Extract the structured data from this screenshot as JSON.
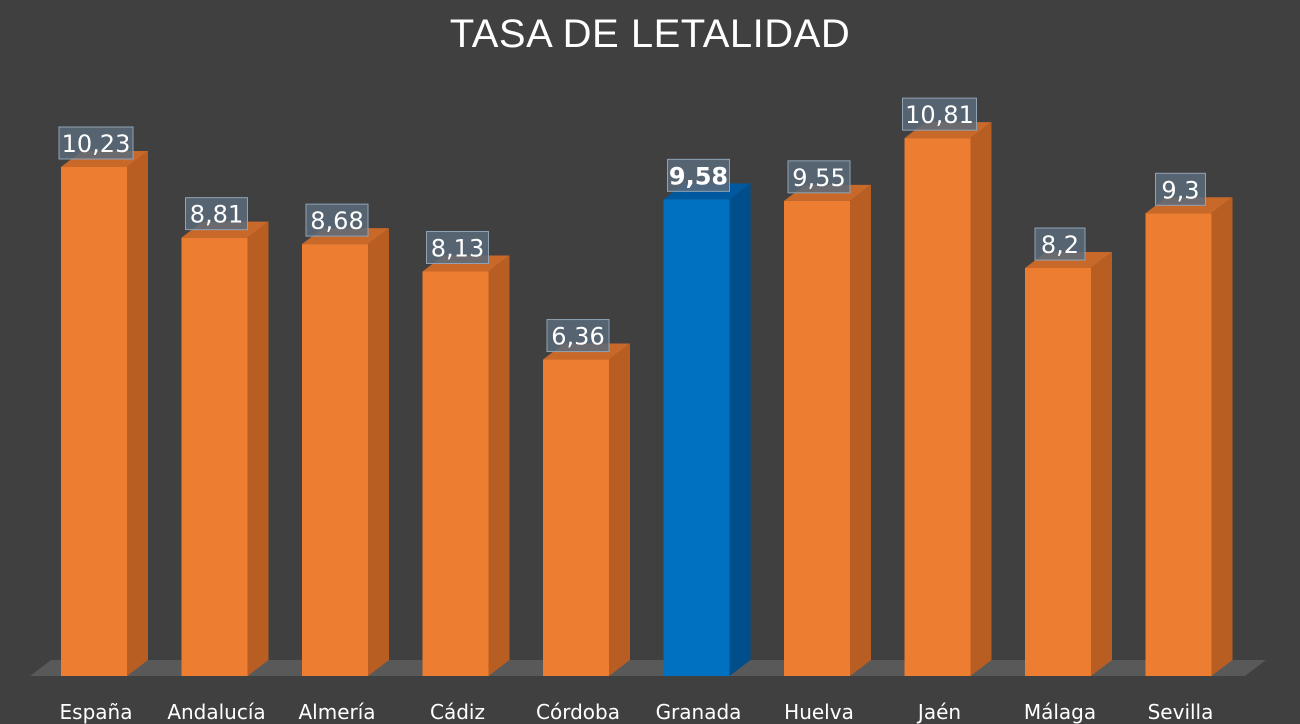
{
  "chart_data": {
    "type": "bar",
    "title": "TASA DE LETALIDAD",
    "xlabel": "",
    "ylabel": "",
    "categories": [
      "España",
      "Andalucía",
      "Almería",
      "Cádiz",
      "Córdoba",
      "Granada",
      "Huelva",
      "Jaén",
      "Málaga",
      "Sevilla"
    ],
    "values": [
      10.23,
      8.81,
      8.68,
      8.13,
      6.36,
      9.58,
      9.55,
      10.81,
      8.2,
      9.3
    ],
    "value_labels": [
      "10,23",
      "8,81",
      "8,68",
      "8,13",
      "6,36",
      "9,58",
      "9,55",
      "10,81",
      "8,2",
      "9,3"
    ],
    "highlight_index": 5,
    "ylim": [
      0,
      11.5
    ],
    "grid": false,
    "legend": "none",
    "colors": {
      "bar": "#ED7D31",
      "bar_side": "#B85E22",
      "bar_top": "#C8692A",
      "highlight": "#0070C0",
      "highlight_side": "#004E8C",
      "highlight_top": "#00589E",
      "background": "#404040",
      "floor": "#595959",
      "label_box": "#5B6B7A"
    }
  }
}
